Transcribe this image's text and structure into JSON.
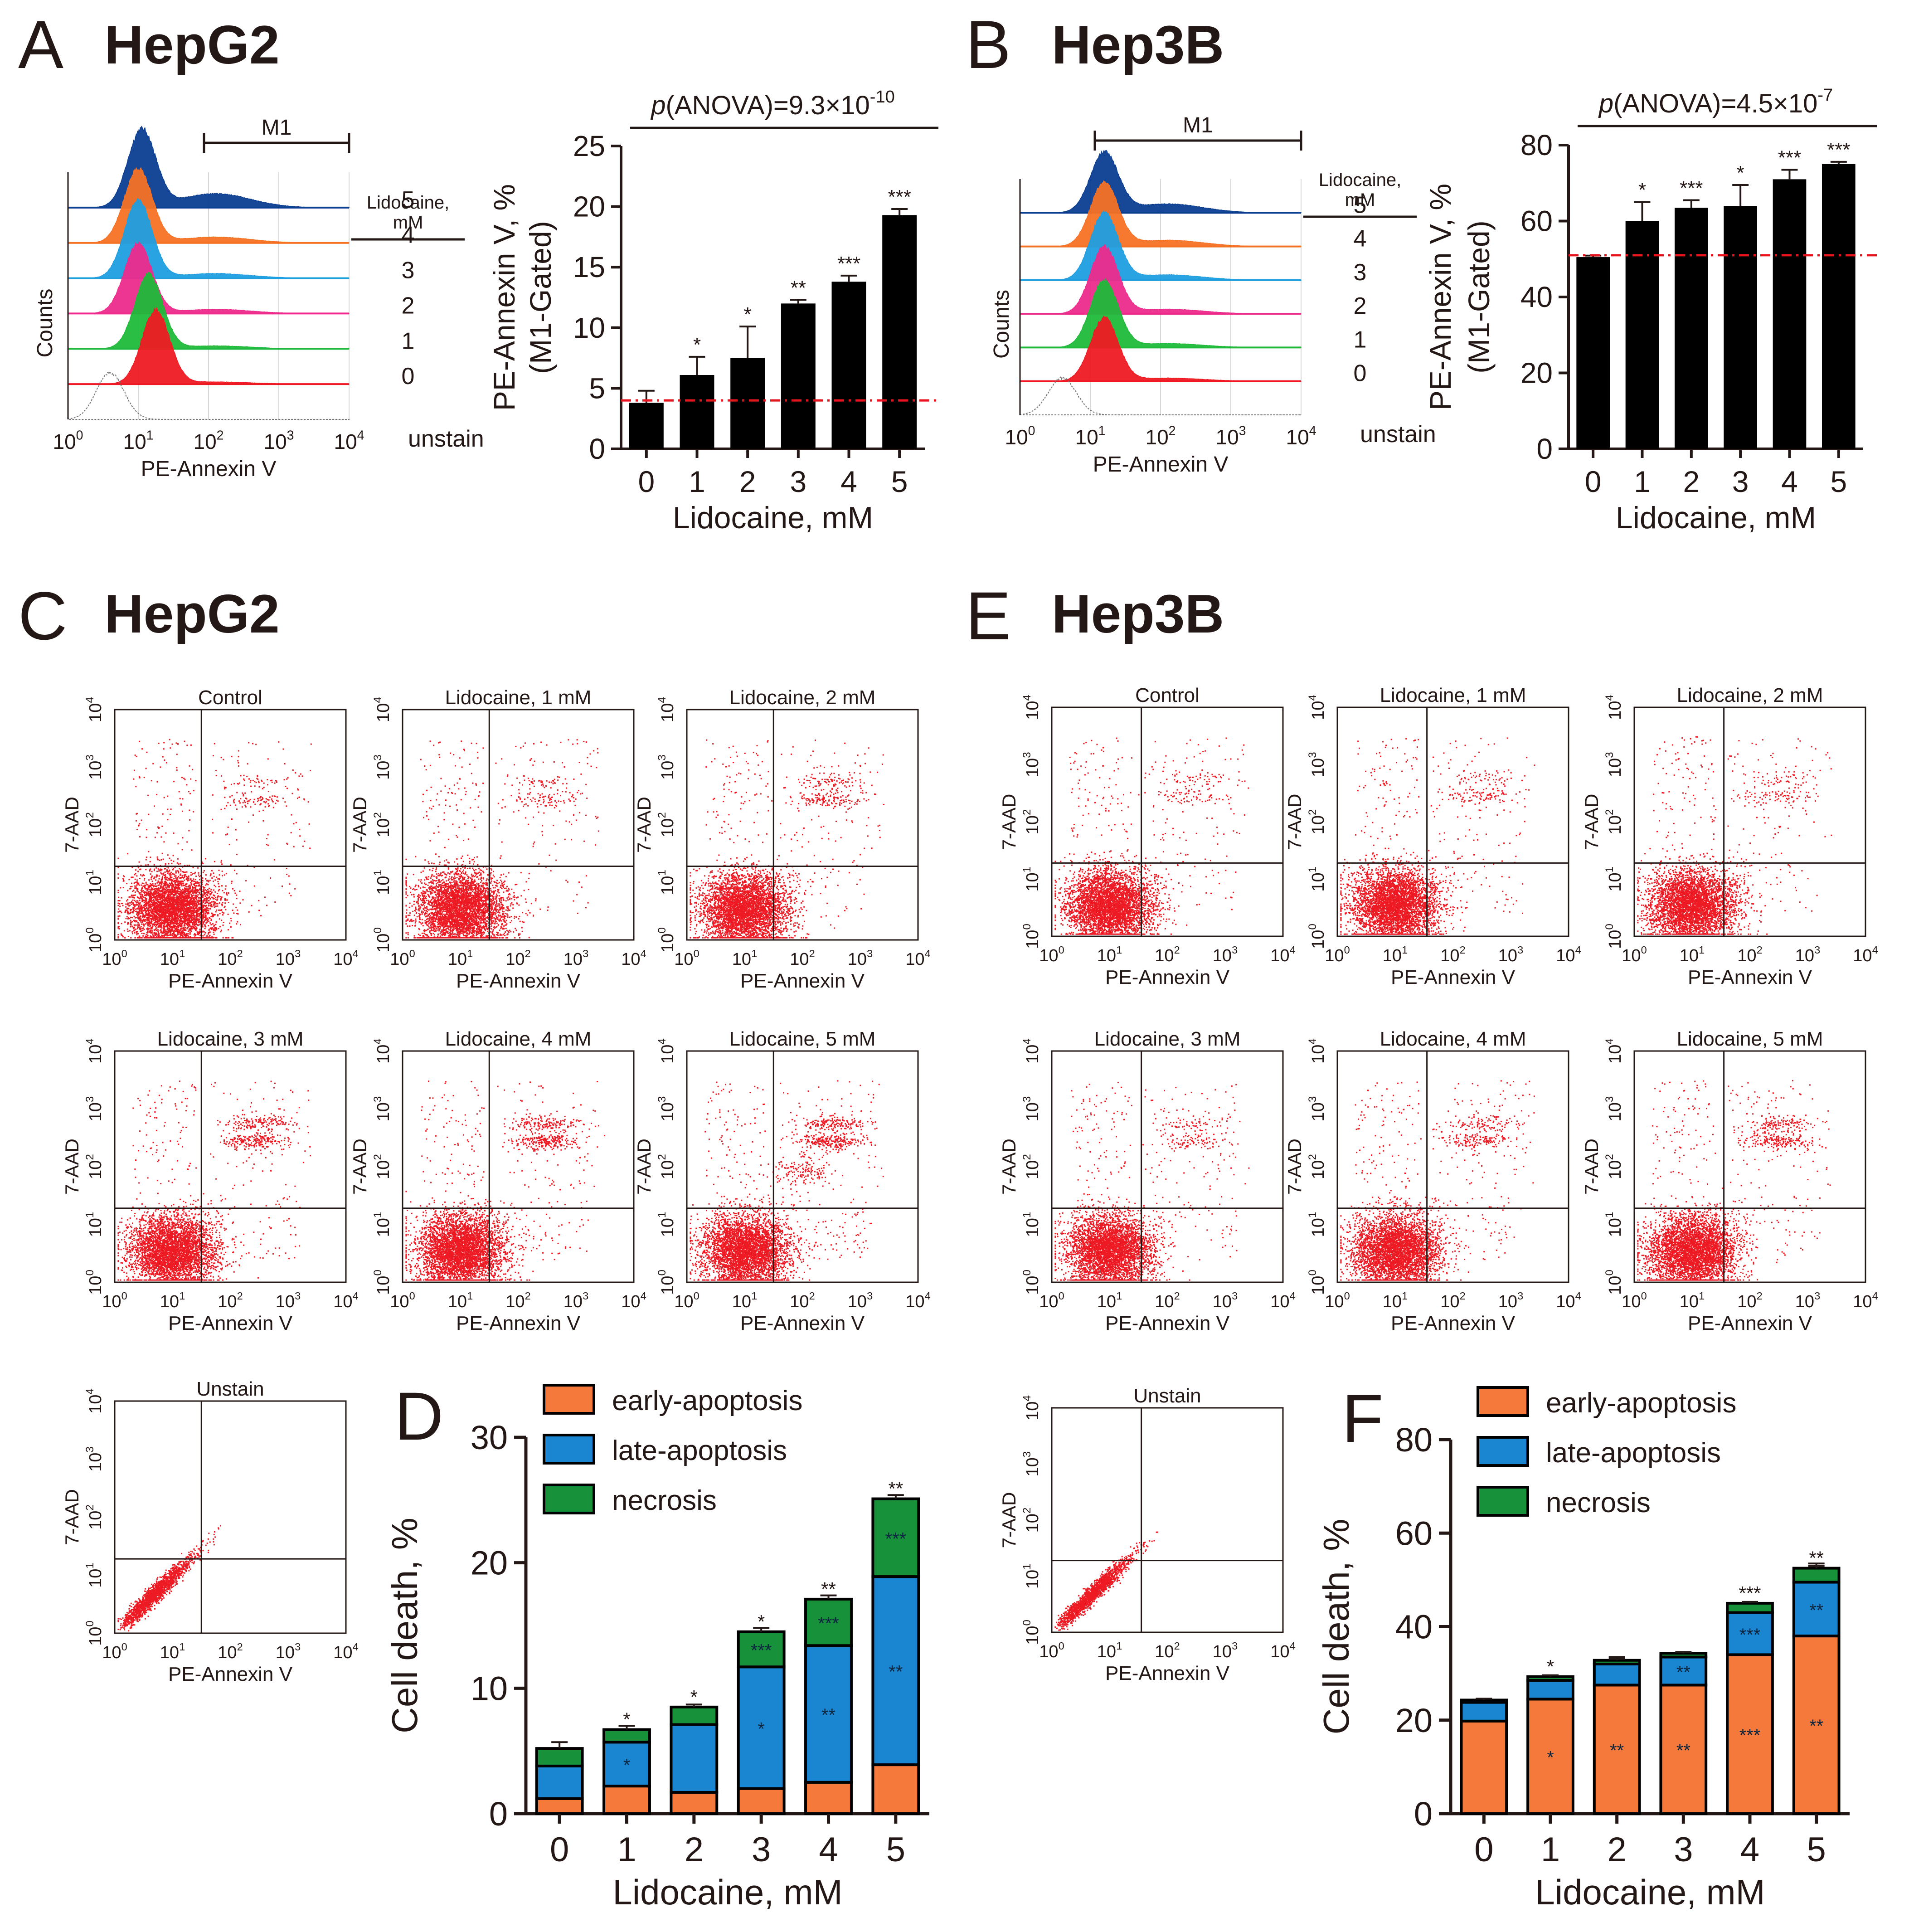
{
  "figure": {
    "panels": {
      "A": {
        "letter": "A",
        "title": "HepG2"
      },
      "B": {
        "letter": "B",
        "title": "Hep3B"
      },
      "C": {
        "letter": "C",
        "title": "HepG2"
      },
      "D": {
        "letter": "D"
      },
      "E": {
        "letter": "E",
        "title": "Hep3B"
      },
      "F": {
        "letter": "F"
      }
    }
  },
  "histograms": [
    {
      "panel": "A",
      "gate_label": "M1",
      "legend_header": [
        "Lidocaine,",
        "mM"
      ],
      "xlabel": "PE-Annexin V",
      "ylabel": "Counts",
      "x_ticks": [
        {
          "base": "10",
          "exp": "0"
        },
        {
          "base": "10",
          "exp": "1"
        },
        {
          "base": "10",
          "exp": "2"
        },
        {
          "base": "10",
          "exp": "3"
        },
        {
          "base": "10",
          "exp": "4"
        }
      ],
      "traces": [
        {
          "label": "5",
          "color": "#0b3d91",
          "peak": 1.05,
          "height": 1.0,
          "tail": 0.18
        },
        {
          "label": "4",
          "color": "#f57224",
          "peak": 1.0,
          "height": 0.95,
          "tail": 0.08
        },
        {
          "label": "3",
          "color": "#1f9ee0",
          "peak": 1.0,
          "height": 1.0,
          "tail": 0.06
        },
        {
          "label": "2",
          "color": "#ec2b8b",
          "peak": 1.0,
          "height": 0.9,
          "tail": 0.06
        },
        {
          "label": "1",
          "color": "#1fba3a",
          "peak": 1.15,
          "height": 0.95,
          "tail": 0.04
        },
        {
          "label": "0",
          "color": "#ee1a23",
          "peak": 1.25,
          "height": 0.95,
          "tail": 0.03
        },
        {
          "label": "unstain",
          "color": "#888888",
          "peak": 0.6,
          "height": 0.6,
          "tail": 0.0
        }
      ]
    },
    {
      "panel": "B",
      "gate_label": "M1",
      "legend_header": [
        "Lidocaine,",
        "mM"
      ],
      "xlabel": "PE-Annexin V",
      "ylabel": "Counts",
      "x_ticks": [
        {
          "base": "10",
          "exp": "0"
        },
        {
          "base": "10",
          "exp": "1"
        },
        {
          "base": "10",
          "exp": "2"
        },
        {
          "base": "10",
          "exp": "3"
        },
        {
          "base": "10",
          "exp": "4"
        }
      ],
      "traces": [
        {
          "label": "5",
          "color": "#0b3d91",
          "peak": 1.2,
          "height": 0.8,
          "tail": 0.15
        },
        {
          "label": "4",
          "color": "#f57224",
          "peak": 1.2,
          "height": 0.85,
          "tail": 0.1
        },
        {
          "label": "3",
          "color": "#1f9ee0",
          "peak": 1.2,
          "height": 0.9,
          "tail": 0.08
        },
        {
          "label": "2",
          "color": "#ec2b8b",
          "peak": 1.2,
          "height": 0.9,
          "tail": 0.07
        },
        {
          "label": "1",
          "color": "#1fba3a",
          "peak": 1.2,
          "height": 0.9,
          "tail": 0.06
        },
        {
          "label": "0",
          "color": "#ee1a23",
          "peak": 1.2,
          "height": 0.85,
          "tail": 0.05
        },
        {
          "label": "unstain",
          "color": "#888888",
          "peak": 0.6,
          "height": 0.5,
          "tail": 0.0
        }
      ]
    }
  ],
  "chart_data": [
    {
      "panel": "A",
      "type": "bar",
      "categories": [
        "0",
        "1",
        "2",
        "3",
        "4",
        "5"
      ],
      "values": [
        3.8,
        6.1,
        7.5,
        12.0,
        13.8,
        19.3
      ],
      "errors": [
        1.0,
        1.5,
        2.6,
        0.3,
        0.5,
        0.5
      ],
      "significance": [
        "",
        "*",
        "*",
        "**",
        "***",
        "***"
      ],
      "baseline": 4.0,
      "ylim": [
        0,
        25
      ],
      "yticks": [
        0,
        5,
        10,
        15,
        20,
        25
      ],
      "xlabel": "Lidocaine, mM",
      "ylabel_lines": [
        "PE-Annexin V, %",
        "(M1-Gated)"
      ],
      "anova": {
        "prefix": "p",
        "text": "(ANOVA)=9.3×10",
        "exp": "-10"
      }
    },
    {
      "panel": "B",
      "type": "bar",
      "categories": [
        "0",
        "1",
        "2",
        "3",
        "4",
        "5"
      ],
      "values": [
        50.5,
        60.0,
        63.5,
        64.0,
        71.0,
        75.0
      ],
      "errors": [
        0.4,
        5.0,
        2.0,
        5.5,
        2.5,
        0.6
      ],
      "significance": [
        "",
        "*",
        "***",
        "*",
        "***",
        "***"
      ],
      "baseline": 51.0,
      "ylim": [
        0,
        80
      ],
      "yticks": [
        0,
        20,
        40,
        60,
        80
      ],
      "xlabel": "Lidocaine, mM",
      "ylabel_lines": [
        "PE-Annexin V, %",
        "(M1-Gated)"
      ],
      "anova": {
        "prefix": "p",
        "text": "(ANOVA)=4.5×10",
        "exp": "-7"
      }
    },
    {
      "panel": "D",
      "type": "bar",
      "stacked": true,
      "categories": [
        "0",
        "1",
        "2",
        "3",
        "4",
        "5"
      ],
      "series": [
        {
          "name": "early-apoptosis",
          "color": "#f5793a",
          "values": [
            1.2,
            2.2,
            1.7,
            2.0,
            2.5,
            3.9
          ],
          "errors": [
            0.3,
            0.3,
            0.6,
            0.2,
            0.2,
            0.4
          ],
          "sig": [
            "",
            "",
            "",
            "",
            "",
            ""
          ]
        },
        {
          "name": "late-apoptosis",
          "color": "#1a85d1",
          "values": [
            2.6,
            3.5,
            5.4,
            9.7,
            10.9,
            15.0
          ],
          "errors": [
            0.8,
            0.3,
            0.3,
            0.3,
            0.3,
            0.6
          ],
          "sig": [
            "",
            "*",
            "",
            "*",
            "**",
            "**"
          ]
        },
        {
          "name": "necrosis",
          "color": "#17923b",
          "values": [
            1.4,
            1.0,
            1.4,
            2.8,
            3.7,
            6.2
          ],
          "errors": [
            0.5,
            0.3,
            0.2,
            0.3,
            0.3,
            0.3
          ],
          "sig": [
            "",
            "",
            "",
            "***",
            "***",
            "***"
          ]
        }
      ],
      "top_significance": [
        "",
        "*",
        "*",
        "*",
        "**",
        "**"
      ],
      "ylim": [
        0,
        30
      ],
      "yticks": [
        0,
        10,
        20,
        30
      ],
      "xlabel": "Lidocaine, mM",
      "ylabel": "Cell death, %"
    },
    {
      "panel": "F",
      "type": "bar",
      "stacked": true,
      "categories": [
        "0",
        "1",
        "2",
        "3",
        "4",
        "5"
      ],
      "series": [
        {
          "name": "early-apoptosis",
          "color": "#f5793a",
          "values": [
            19.8,
            24.5,
            27.5,
            27.5,
            34.0,
            38.0
          ],
          "errors": [
            0.4,
            0.8,
            0.8,
            0.8,
            1.2,
            1.0
          ],
          "sig": [
            "",
            "*",
            "**",
            "**",
            "***",
            "**"
          ]
        },
        {
          "name": "late-apoptosis",
          "color": "#1a85d1",
          "values": [
            4.0,
            4.0,
            4.5,
            6.0,
            9.0,
            11.5
          ],
          "errors": [
            0.5,
            0.5,
            1.5,
            0.8,
            2.0,
            4.0
          ],
          "sig": [
            "",
            "",
            "",
            "**",
            "***",
            "**"
          ]
        },
        {
          "name": "necrosis",
          "color": "#17923b",
          "values": [
            0.5,
            0.8,
            0.8,
            0.8,
            2.0,
            3.0
          ],
          "errors": [
            0.3,
            0.3,
            0.3,
            0.3,
            0.3,
            0.5
          ],
          "sig": [
            "",
            "",
            "",
            "",
            "",
            ""
          ]
        }
      ],
      "top_significance": [
        "",
        "*",
        "",
        "",
        "***",
        "**"
      ],
      "ylim": [
        0,
        80
      ],
      "yticks": [
        0,
        20,
        40,
        60,
        80
      ],
      "xlabel": "Lidocaine, mM",
      "ylabel": "Cell death, %"
    }
  ],
  "flow_panels": {
    "xlabel": "PE-Annexin V",
    "ylabel": "7-AAD",
    "tick_base": "10",
    "tick_exps": [
      "0",
      "1",
      "2",
      "3",
      "4"
    ],
    "dot_color": "#ee1a23",
    "C": [
      {
        "title": "Control",
        "late": 0.4,
        "mid": 0.0,
        "lr": 0.3
      },
      {
        "title": "Lidocaine, 1 mM",
        "late": 0.45,
        "mid": 0.0,
        "lr": 0.3
      },
      {
        "title": "Lidocaine, 2 mM",
        "late": 0.8,
        "mid": 0.0,
        "lr": 0.4
      },
      {
        "title": "Lidocaine, 3 mM",
        "late": 1.3,
        "mid": 0.0,
        "lr": 0.6
      },
      {
        "title": "Lidocaine, 4 mM",
        "late": 1.4,
        "mid": 0.0,
        "lr": 0.6
      },
      {
        "title": "Lidocaine, 5 mM",
        "late": 1.5,
        "mid": 0.6,
        "lr": 0.8
      },
      {
        "title": "Unstain",
        "unstain": true
      }
    ],
    "E": [
      {
        "title": "Control",
        "late": 0.4,
        "mid": 0.0,
        "lr": 0.4
      },
      {
        "title": "Lidocaine, 1 mM",
        "late": 0.45,
        "mid": 0.0,
        "lr": 0.5
      },
      {
        "title": "Lidocaine, 2 mM",
        "late": 0.45,
        "mid": 0.0,
        "lr": 0.5
      },
      {
        "title": "Lidocaine, 3 mM",
        "late": 0.55,
        "mid": 0.0,
        "lr": 0.5
      },
      {
        "title": "Lidocaine, 4 mM",
        "late": 0.9,
        "mid": 0.0,
        "lr": 0.6
      },
      {
        "title": "Lidocaine, 5 mM",
        "late": 1.2,
        "mid": 0.0,
        "lr": 0.6
      },
      {
        "title": "Unstain",
        "unstain": true
      }
    ]
  }
}
